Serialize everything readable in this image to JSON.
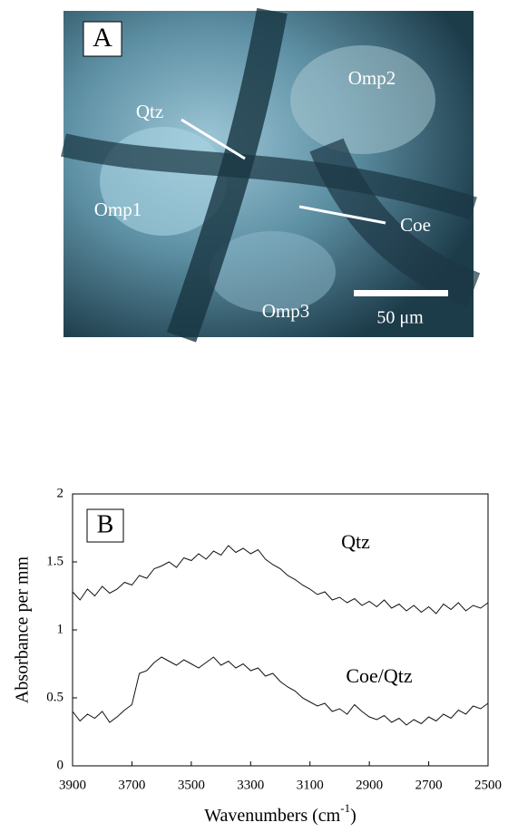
{
  "image_panel": {
    "panel_label": "A",
    "labels": [
      "Qtz",
      "Omp2",
      "Omp1",
      "Coe",
      "Omp3"
    ],
    "scale_bar_label": "50 μm"
  },
  "chart_data": {
    "type": "line",
    "panel_label": "B",
    "y_label": "Absorbance per mm",
    "x_label_parts": [
      "Wavenumbers (cm",
      "-1",
      ")"
    ],
    "x": [
      3900,
      3875,
      3850,
      3825,
      3800,
      3775,
      3750,
      3725,
      3700,
      3675,
      3650,
      3625,
      3600,
      3575,
      3550,
      3525,
      3500,
      3475,
      3450,
      3425,
      3400,
      3375,
      3350,
      3325,
      3300,
      3275,
      3250,
      3225,
      3200,
      3175,
      3150,
      3125,
      3100,
      3075,
      3050,
      3025,
      3000,
      2975,
      2950,
      2925,
      2900,
      2875,
      2850,
      2825,
      2800,
      2775,
      2750,
      2725,
      2700,
      2675,
      2650,
      2625,
      2600,
      2575,
      2550,
      2525,
      2500
    ],
    "series": [
      {
        "name": "Qtz",
        "color": "#111111",
        "values": [
          1.28,
          1.22,
          1.3,
          1.25,
          1.32,
          1.27,
          1.3,
          1.35,
          1.33,
          1.4,
          1.38,
          1.45,
          1.47,
          1.5,
          1.46,
          1.53,
          1.51,
          1.56,
          1.52,
          1.58,
          1.55,
          1.62,
          1.57,
          1.6,
          1.56,
          1.59,
          1.52,
          1.48,
          1.45,
          1.4,
          1.37,
          1.33,
          1.3,
          1.26,
          1.28,
          1.22,
          1.24,
          1.2,
          1.23,
          1.18,
          1.21,
          1.17,
          1.22,
          1.16,
          1.19,
          1.14,
          1.18,
          1.13,
          1.17,
          1.12,
          1.19,
          1.15,
          1.2,
          1.14,
          1.18,
          1.16,
          1.2
        ]
      },
      {
        "name": "Coe/Qtz",
        "color": "#111111",
        "values": [
          0.4,
          0.33,
          0.38,
          0.35,
          0.4,
          0.32,
          0.36,
          0.41,
          0.45,
          0.68,
          0.7,
          0.76,
          0.8,
          0.77,
          0.74,
          0.78,
          0.75,
          0.72,
          0.76,
          0.8,
          0.74,
          0.77,
          0.72,
          0.75,
          0.7,
          0.72,
          0.66,
          0.68,
          0.62,
          0.58,
          0.55,
          0.5,
          0.47,
          0.44,
          0.46,
          0.4,
          0.42,
          0.38,
          0.45,
          0.4,
          0.36,
          0.34,
          0.37,
          0.32,
          0.35,
          0.3,
          0.34,
          0.31,
          0.36,
          0.33,
          0.38,
          0.35,
          0.41,
          0.38,
          0.44,
          0.42,
          0.46
        ]
      }
    ],
    "xlim": [
      3900,
      2500
    ],
    "xticks": [
      3900,
      3700,
      3500,
      3300,
      3100,
      2900,
      2700,
      2500
    ],
    "ylim": [
      0,
      2
    ],
    "yticks": [
      0,
      0.5,
      1,
      1.5,
      2
    ]
  }
}
